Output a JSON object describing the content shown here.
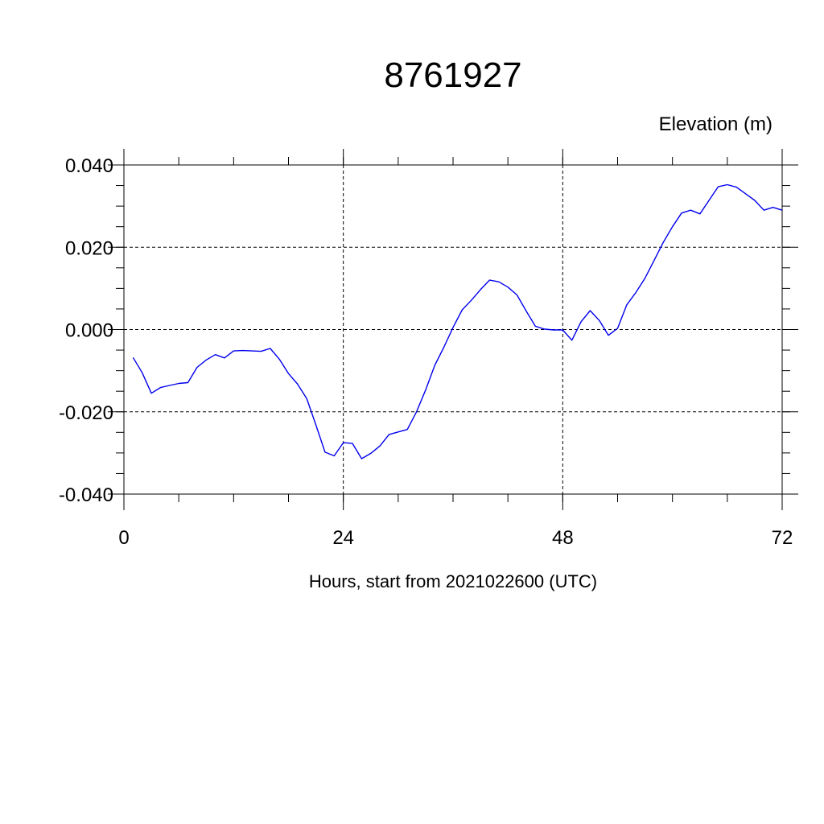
{
  "chart_data": {
    "type": "line",
    "title": "8761927",
    "ylabel": "Elevation (m)",
    "xlabel": "Hours, start from 2021022600 (UTC)",
    "xlim": [
      0,
      72
    ],
    "ylim": [
      -0.04,
      0.04
    ],
    "x_ticks": [
      0,
      24,
      48,
      72
    ],
    "x_tick_labels": [
      "0",
      "24",
      "48",
      "72"
    ],
    "y_ticks": [
      -0.04,
      -0.02,
      0.0,
      0.02,
      0.04
    ],
    "y_tick_labels": [
      "-0.040",
      "-0.020",
      "0.000",
      "0.020",
      "0.040"
    ],
    "grid": true,
    "line_color": "#0000ee",
    "series": [
      {
        "x": [
          1,
          2,
          3,
          4,
          5,
          6,
          7,
          8,
          9,
          10,
          11,
          12,
          13,
          14,
          15,
          16,
          17,
          18,
          19,
          20,
          21,
          22,
          23,
          24,
          25,
          26,
          27,
          28,
          29,
          30,
          31,
          32,
          33,
          34,
          35,
          36,
          37,
          38,
          39,
          40,
          41,
          42,
          43,
          44,
          45,
          46,
          47,
          48,
          49,
          50,
          51,
          52,
          53,
          54,
          55,
          56,
          57,
          58,
          59,
          60,
          61,
          62,
          63,
          64,
          65,
          66,
          67,
          68,
          69,
          70,
          71,
          72
        ],
        "values": [
          -0.0068,
          -0.0105,
          -0.0155,
          -0.0141,
          -0.0136,
          -0.0131,
          -0.0129,
          -0.0092,
          -0.0074,
          -0.0061,
          -0.0069,
          -0.0052,
          -0.0051,
          -0.0052,
          -0.0053,
          -0.0046,
          -0.0072,
          -0.0107,
          -0.0133,
          -0.0168,
          -0.0232,
          -0.0298,
          -0.0307,
          -0.0275,
          -0.0277,
          -0.0314,
          -0.0301,
          -0.0283,
          -0.0255,
          -0.0249,
          -0.0243,
          -0.02,
          -0.0147,
          -0.0087,
          -0.0043,
          0.0005,
          0.0048,
          0.0071,
          0.0097,
          0.012,
          0.0116,
          0.0103,
          0.0084,
          0.0045,
          0.0008,
          0.0001,
          -0.0001,
          -0.0001,
          -0.0026,
          0.0019,
          0.0046,
          0.0022,
          -0.0014,
          0.0003,
          0.006,
          0.009,
          0.0125,
          0.0168,
          0.0212,
          0.025,
          0.0283,
          0.029,
          0.0281,
          0.0314,
          0.0347,
          0.0352,
          0.0346,
          0.033,
          0.0314,
          0.029,
          0.0297,
          0.029
        ]
      }
    ]
  }
}
